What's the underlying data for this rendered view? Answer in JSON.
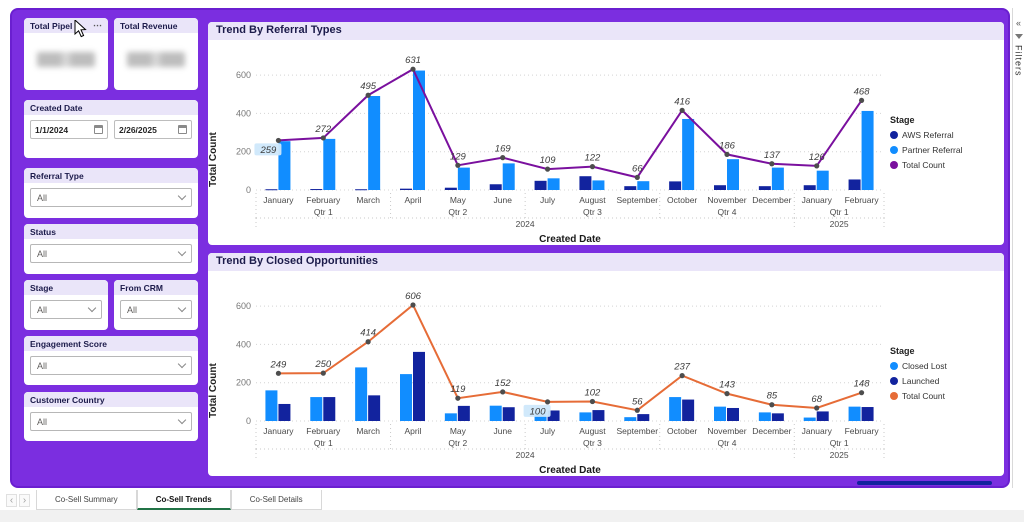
{
  "kpis": [
    {
      "title": "Total Pipel",
      "menu_icon": "⋯"
    },
    {
      "title": "Total Revenue"
    }
  ],
  "date_filter": {
    "label": "Created Date",
    "start": "1/1/2024",
    "end": "2/26/2025"
  },
  "filters": [
    {
      "label": "Referral Type",
      "value": "All"
    },
    {
      "label": "Status",
      "value": "All"
    },
    {
      "label": "Stage",
      "value": "All"
    },
    {
      "label": "From CRM",
      "value": "All"
    },
    {
      "label": "Engagement Score",
      "value": "All"
    },
    {
      "label": "Customer Country",
      "value": "All"
    }
  ],
  "filter_pane": {
    "label": "Filters",
    "collapse_icon": "«"
  },
  "tabs": {
    "prev_icon": "‹",
    "next_icon": "›",
    "items": [
      {
        "label": "Co-Sell Summary",
        "active": false
      },
      {
        "label": "Co-Sell Trends",
        "active": true
      },
      {
        "label": "Co-Sell Details",
        "active": false
      }
    ]
  },
  "colors": {
    "canvas_purple": "#7b2ee0",
    "card_header_lavender": "#eae5f9",
    "light_blue": "#118DFF",
    "dark_navy": "#12239E",
    "purple_line": "#7A109E",
    "orange_line": "#E66C37",
    "active_tab_underline": "#217346",
    "highlight_label_bg": "#cfe8fb"
  },
  "chart_data": [
    {
      "type": "combo-bar-line",
      "title": "Trend By Referral Types",
      "xlabel": "Created Date",
      "ylabel": "Total Count",
      "ylim": [
        0,
        700
      ],
      "yticks": [
        0,
        200,
        400,
        600
      ],
      "grid": "dotted-horizontal",
      "legend_title": "Stage",
      "legend_position": "right",
      "categories": [
        "January",
        "February",
        "March",
        "April",
        "May",
        "June",
        "July",
        "August",
        "September",
        "October",
        "November",
        "December",
        "January",
        "February"
      ],
      "quarters": [
        {
          "label": "Qtr 1",
          "start": 0,
          "end": 2
        },
        {
          "label": "Qtr 2",
          "start": 3,
          "end": 5
        },
        {
          "label": "Qtr 3",
          "start": 6,
          "end": 8
        },
        {
          "label": "Qtr 4",
          "start": 9,
          "end": 11
        },
        {
          "label": "Qtr 1",
          "start": 12,
          "end": 13
        }
      ],
      "years": [
        {
          "label": "2024",
          "start": 0,
          "end": 11
        },
        {
          "label": "2025",
          "start": 12,
          "end": 13
        }
      ],
      "series": [
        {
          "name": "AWS Referral",
          "type": "bar",
          "color": "#12239E",
          "values": [
            4,
            5,
            4,
            7,
            12,
            30,
            48,
            72,
            20,
            45,
            25,
            20,
            25,
            55
          ]
        },
        {
          "name": "Partner Referral",
          "type": "bar",
          "color": "#118DFF",
          "values": [
            255,
            267,
            491,
            624,
            117,
            139,
            61,
            50,
            46,
            371,
            161,
            117,
            101,
            413
          ]
        },
        {
          "name": "Total Count",
          "type": "line",
          "color": "#7A109E",
          "values": [
            259,
            272,
            495,
            631,
            129,
            169,
            109,
            122,
            66,
            416,
            186,
            137,
            126,
            468
          ]
        }
      ],
      "highlight_index": 0
    },
    {
      "type": "combo-bar-line",
      "title": "Trend By Closed Opportunities",
      "xlabel": "Created Date",
      "ylabel": "Total Count",
      "ylim": [
        0,
        700
      ],
      "yticks": [
        0,
        200,
        400,
        600
      ],
      "grid": "dotted-horizontal",
      "legend_title": "Stage",
      "legend_position": "right",
      "categories": [
        "January",
        "February",
        "March",
        "April",
        "May",
        "June",
        "July",
        "August",
        "September",
        "October",
        "November",
        "December",
        "January",
        "February"
      ],
      "quarters": [
        {
          "label": "Qtr 1",
          "start": 0,
          "end": 2
        },
        {
          "label": "Qtr 2",
          "start": 3,
          "end": 5
        },
        {
          "label": "Qtr 3",
          "start": 6,
          "end": 8
        },
        {
          "label": "Qtr 4",
          "start": 9,
          "end": 11
        },
        {
          "label": "Qtr 1",
          "start": 12,
          "end": 13
        }
      ],
      "years": [
        {
          "label": "2024",
          "start": 0,
          "end": 11
        },
        {
          "label": "2025",
          "start": 12,
          "end": 13
        }
      ],
      "series": [
        {
          "name": "Closed Lost",
          "type": "bar",
          "color": "#118DFF",
          "values": [
            160,
            125,
            280,
            245,
            40,
            80,
            45,
            45,
            20,
            125,
            75,
            45,
            18,
            75
          ]
        },
        {
          "name": "Launched",
          "type": "bar",
          "color": "#12239E",
          "values": [
            89,
            125,
            134,
            361,
            79,
            72,
            55,
            57,
            36,
            112,
            68,
            40,
            50,
            73
          ]
        },
        {
          "name": "Total Count",
          "type": "line",
          "color": "#E66C37",
          "values": [
            249,
            250,
            414,
            606,
            119,
            152,
            100,
            102,
            56,
            237,
            143,
            85,
            68,
            148
          ]
        }
      ],
      "highlight_index": 6
    }
  ]
}
